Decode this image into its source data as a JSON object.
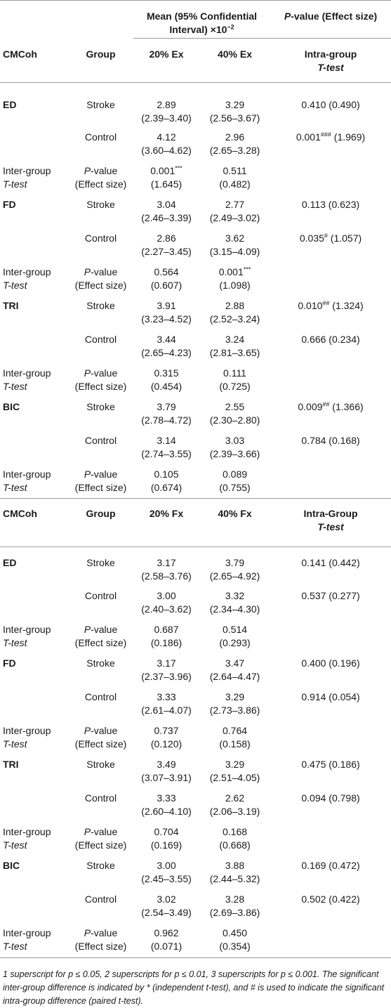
{
  "header": {
    "mean_ci_line1": "Mean (95% Confidential",
    "mean_ci_line2": "Interval) ×10",
    "mean_ci_exp": "−2",
    "pvalue_label_italic": "P",
    "pvalue_label_rest": "-value (Effect size)"
  },
  "blocks": [
    {
      "columns": {
        "cmcoh": "CMCoh",
        "group": "Group",
        "col20": "20% Ex",
        "col40": "40% Ex",
        "ttest_line1": "Intra-group",
        "ttest_line2": "T-test"
      },
      "muscles": [
        {
          "name": "ED",
          "stroke": {
            "label": "Stroke",
            "v20": "2.89",
            "ci20": "(2.39–3.40)",
            "v40": "3.29",
            "ci40": "(2.56–3.67)",
            "p": "0.410",
            "sup": "",
            "es": " (0.490)"
          },
          "control": {
            "label": "Control",
            "v20": "4.12",
            "ci20": "(3.60–4.62)",
            "v40": "2.96",
            "ci40": "(2.65–3.28)",
            "p": "0.001",
            "sup": "###",
            "es": " (1.969)"
          },
          "inter": {
            "label1": "Inter-group",
            "label2": "T-test",
            "p_label": "P-value",
            "es_label": "(Effect size)",
            "p20": "0.001",
            "sup20": "***",
            "es20": "(1.645)",
            "p40": "0.511",
            "sup40": "",
            "es40": "(0.482)"
          }
        },
        {
          "name": "FD",
          "stroke": {
            "label": "Stroke",
            "v20": "3.04",
            "ci20": "(2.46–3.39)",
            "v40": "2.77",
            "ci40": "(2.49–3.02)",
            "p": "0.113",
            "sup": "",
            "es": " (0.623)"
          },
          "control": {
            "label": "Control",
            "v20": "2.86",
            "ci20": "(2.27–3.45)",
            "v40": "3.62",
            "ci40": "(3.15–4.09)",
            "p": "0.035",
            "sup": "#",
            "es": " (1.057)"
          },
          "inter": {
            "label1": "Inter-group",
            "label2": "T-test",
            "p_label": "P-value",
            "es_label": "(Effect size)",
            "p20": "0.564",
            "sup20": "",
            "es20": "(0.607)",
            "p40": "0.001",
            "sup40": "***",
            "es40": "(1.098)"
          }
        },
        {
          "name": "TRI",
          "stroke": {
            "label": "Stroke",
            "v20": "3.91",
            "ci20": "(3.23–4.52)",
            "v40": "2.88",
            "ci40": "(2.52–3.24)",
            "p": "0.010",
            "sup": "##",
            "es": " (1.324)"
          },
          "control": {
            "label": "Control",
            "v20": "3.44",
            "ci20": "(2.65–4.23)",
            "v40": "3.24",
            "ci40": "(2.81–3.65)",
            "p": "0.666",
            "sup": "",
            "es": " (0.234)"
          },
          "inter": {
            "label1": "Inter-group",
            "label2": "T-test",
            "p_label": "P-value",
            "es_label": "(Effect size)",
            "p20": "0.315",
            "sup20": "",
            "es20": "(0.454)",
            "p40": "0.111",
            "sup40": "",
            "es40": "(0.725)"
          }
        },
        {
          "name": "BIC",
          "stroke": {
            "label": "Stroke",
            "v20": "3.79",
            "ci20": "(2.78–4.72)",
            "v40": "2.55",
            "ci40": "(2.30–2.80)",
            "p": "0.009",
            "sup": "##",
            "es": " (1.366)"
          },
          "control": {
            "label": "Control",
            "v20": "3.14",
            "ci20": "(2.74–3.55)",
            "v40": "3.03",
            "ci40": "(2.39–3.66)",
            "p": "0.784",
            "sup": "",
            "es": " (0.168)"
          },
          "inter": {
            "label1": "Inter-group",
            "label2": "T-test",
            "p_label": "P-value",
            "es_label": "(Effect size)",
            "p20": "0.105",
            "sup20": "",
            "es20": "(0.674)",
            "p40": "0.089",
            "sup40": "",
            "es40": "(0.755)"
          }
        }
      ]
    },
    {
      "columns": {
        "cmcoh": "CMCoh",
        "group": "Group",
        "col20": "20% Fx",
        "col40": "40% Fx",
        "ttest_line1": "Intra-Group",
        "ttest_line2": "T-test"
      },
      "muscles": [
        {
          "name": "ED",
          "stroke": {
            "label": "Stroke",
            "v20": "3.17",
            "ci20": "(2.58–3.76)",
            "v40": "3.79",
            "ci40": "(2.65–4.92)",
            "p": "0.141",
            "sup": "",
            "es": " (0.442)"
          },
          "control": {
            "label": "Control",
            "v20": "3.00",
            "ci20": "(2.40–3.62)",
            "v40": "3.32",
            "ci40": "(2.34–4.30)",
            "p": "0.537",
            "sup": "",
            "es": " (0.277)"
          },
          "inter": {
            "label1": "Inter-group",
            "label2": "T-test",
            "p_label": "P-value",
            "es_label": "(Effect size)",
            "p20": "0.687",
            "sup20": "",
            "es20": "(0.186)",
            "p40": "0.514",
            "sup40": "",
            "es40": "(0.293)"
          }
        },
        {
          "name": "FD",
          "stroke": {
            "label": "Stroke",
            "v20": "3.17",
            "ci20": "(2.37–3.96)",
            "v40": "3.47",
            "ci40": "(2.64–4.47)",
            "p": "0.400",
            "sup": "",
            "es": " (0.196)"
          },
          "control": {
            "label": "Control",
            "v20": "3.33",
            "ci20": "(2.61–4.07)",
            "v40": "3.29",
            "ci40": "(2.73–3.86)",
            "p": "0.914",
            "sup": "",
            "es": " (0.054)"
          },
          "inter": {
            "label1": "Inter-group",
            "label2": "T-test",
            "p_label": "P-value",
            "es_label": "(Effect size)",
            "p20": "0.737",
            "sup20": "",
            "es20": "(0.120)",
            "p40": "0.764",
            "sup40": "",
            "es40": "(0.158)"
          }
        },
        {
          "name": "TRI",
          "stroke": {
            "label": "Stroke",
            "v20": "3.49",
            "ci20": "(3.07–3.91)",
            "v40": "3.29",
            "ci40": "(2.51–4.05)",
            "p": "0.475",
            "sup": "",
            "es": " (0.186)"
          },
          "control": {
            "label": "Control",
            "v20": "3.33",
            "ci20": "(2.60–4.10)",
            "v40": "2.62",
            "ci40": "(2.06–3.19)",
            "p": "0.094",
            "sup": "",
            "es": " (0.798)"
          },
          "inter": {
            "label1": "Inter-group",
            "label2": "T-test",
            "p_label": "P-value",
            "es_label": "(Effect size)",
            "p20": "0.704",
            "sup20": "",
            "es20": "(0.169)",
            "p40": "0.168",
            "sup40": "",
            "es40": "(0.668)"
          }
        },
        {
          "name": "BIC",
          "stroke": {
            "label": "Stroke",
            "v20": "3.00",
            "ci20": "(2.45–3.55)",
            "v40": "3.88",
            "ci40": "(2.44–5.32)",
            "p": "0.169",
            "sup": "",
            "es": " (0.472)"
          },
          "control": {
            "label": "Control",
            "v20": "3.02",
            "ci20": "(2.54–3.49)",
            "v40": "3.28",
            "ci40": "(2.69–3.86)",
            "p": "0.502",
            "sup": "",
            "es": " (0.422)"
          },
          "inter": {
            "label1": "Inter-group",
            "label2": "T-test",
            "p_label": "P-value",
            "es_label": "(Effect size)",
            "p20": "0.962",
            "sup20": "",
            "es20": "(0.071)",
            "p40": "0.450",
            "sup40": "",
            "es40": "(0.354)"
          }
        }
      ]
    }
  ],
  "footnote": "1 superscript for p ≤ 0.05, 2 superscripts for p ≤ 0.01, 3 superscripts for p ≤ 0.001. The significant inter-group difference is indicated by * (independent t-test), and # is used to indicate the significant intra-group difference (paired t-test)."
}
